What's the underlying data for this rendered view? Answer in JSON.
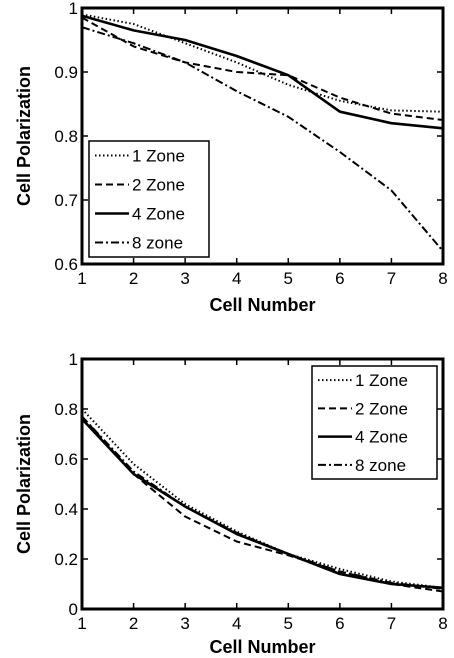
{
  "chart_data": [
    {
      "type": "line",
      "xlabel": "Cell Number",
      "ylabel": "Cell Polarization",
      "xlim": [
        1,
        8
      ],
      "ylim": [
        0.6,
        1
      ],
      "x": [
        1,
        2,
        3,
        4,
        5,
        6,
        7,
        8
      ],
      "xticks": [
        "1",
        "2",
        "3",
        "4",
        "5",
        "6",
        "7",
        "8"
      ],
      "yticks": [
        "0.6",
        "0.7",
        "0.8",
        "0.9",
        "1"
      ],
      "legend": "bottom-left",
      "grid": false,
      "series": [
        {
          "name": "1 Zone",
          "style": "dotted",
          "values": [
            0.99,
            0.975,
            0.945,
            0.915,
            0.88,
            0.855,
            0.84,
            0.838
          ]
        },
        {
          "name": "2 Zone",
          "style": "dashed",
          "values": [
            0.985,
            0.94,
            0.915,
            0.9,
            0.895,
            0.86,
            0.835,
            0.825
          ]
        },
        {
          "name": "4 Zone",
          "style": "solid",
          "values": [
            0.988,
            0.965,
            0.95,
            0.925,
            0.895,
            0.838,
            0.82,
            0.812
          ]
        },
        {
          "name": "8 zone",
          "style": "dashdot",
          "values": [
            0.97,
            0.945,
            0.915,
            0.87,
            0.83,
            0.775,
            0.715,
            0.62
          ]
        }
      ]
    },
    {
      "type": "line",
      "xlabel": "Cell Number",
      "ylabel": "Cell Polarization",
      "xlim": [
        1,
        8
      ],
      "ylim": [
        0,
        1
      ],
      "x": [
        1,
        2,
        3,
        4,
        5,
        6,
        7,
        8
      ],
      "xticks": [
        "1",
        "2",
        "3",
        "4",
        "5",
        "6",
        "7",
        "8"
      ],
      "yticks": [
        "0",
        "0.2",
        "0.4",
        "0.6",
        "0.8",
        "1"
      ],
      "legend": "top-right",
      "grid": false,
      "series": [
        {
          "name": "1 Zone",
          "style": "dotted",
          "values": [
            0.8,
            0.58,
            0.42,
            0.31,
            0.22,
            0.16,
            0.11,
            0.085
          ]
        },
        {
          "name": "2 Zone",
          "style": "dashed",
          "values": [
            0.77,
            0.54,
            0.37,
            0.27,
            0.215,
            0.15,
            0.1,
            0.07
          ]
        },
        {
          "name": "4 Zone",
          "style": "solid",
          "values": [
            0.76,
            0.54,
            0.41,
            0.3,
            0.22,
            0.14,
            0.1,
            0.085
          ]
        },
        {
          "name": "8 zone",
          "style": "dashdot",
          "values": [
            0.77,
            0.55,
            0.41,
            0.305,
            0.22,
            0.15,
            0.105,
            0.08
          ]
        }
      ]
    }
  ]
}
